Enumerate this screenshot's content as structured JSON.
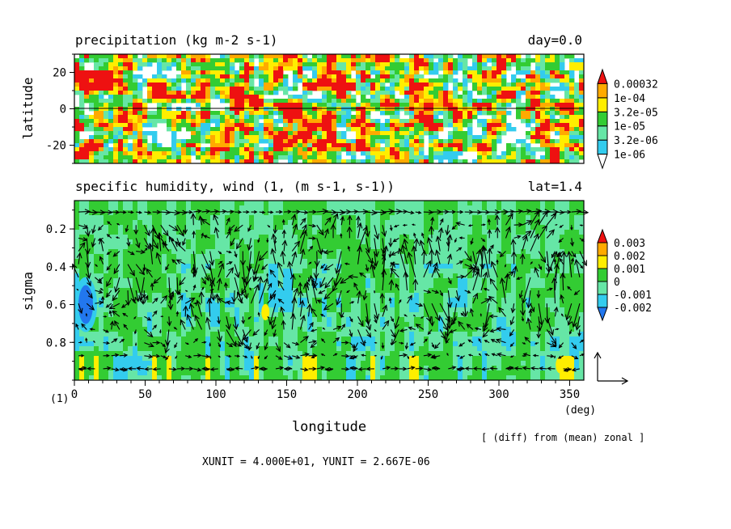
{
  "footer": {
    "units": "XUNIT = 4.000E+01, YUNIT = 2.667E-06",
    "diff_note": "[ (diff) from (mean) zonal ]",
    "corner_label": "(1)"
  },
  "colors": {
    "white": "#ffffff",
    "cyan": "#33ccee",
    "light_green": "#66e6a6",
    "green": "#33cc33",
    "yellow": "#ffee00",
    "orange": "#ffaa00",
    "red": "#ee1111",
    "blue": "#2277ee",
    "arrow": "#000000"
  },
  "chart_data": [
    {
      "type": "heatmap",
      "title": "precipitation (kg m-2 s-1)",
      "right_title": "day=0.0",
      "xlabel": "",
      "ylabel": "latitude",
      "x_unit_label": "",
      "xlim": [
        0,
        360
      ],
      "ylim": [
        -30,
        30
      ],
      "yticks": [
        "20",
        "0",
        "-20"
      ],
      "ytick_values": [
        20,
        0,
        -20
      ],
      "zero_line": 0,
      "levels": [
        "1e-06",
        "3.2e-06",
        "1e-05",
        "3.2e-05",
        "1e-04",
        "0.00032"
      ],
      "level_colors": [
        "#ffffff",
        "#33ccee",
        "#66e6a6",
        "#33cc33",
        "#ffee00",
        "#ffaa00",
        "#ee1111"
      ],
      "field_pattern": "cellular noise, random precipitation cells across tropics"
    },
    {
      "type": "heatmap",
      "title": "specific humidity, wind (1, (m s-1, s-1))",
      "right_title": "lat=1.4",
      "xlabel": "longitude",
      "ylabel": "sigma",
      "x_unit_label": "(deg)",
      "xlim": [
        0,
        360
      ],
      "ylim": [
        1.0,
        0.05
      ],
      "xticks": [
        "0",
        "50",
        "100",
        "150",
        "200",
        "250",
        "300",
        "350"
      ],
      "xtick_values": [
        0,
        50,
        100,
        150,
        200,
        250,
        300,
        350
      ],
      "yticks": [
        "0.2",
        "0.4",
        "0.6",
        "0.8"
      ],
      "ytick_values": [
        0.2,
        0.4,
        0.6,
        0.8
      ],
      "levels": [
        "-0.002",
        "-0.001",
        "0",
        "0.001",
        "0.002",
        "0.003"
      ],
      "level_colors": [
        "#2277ee",
        "#33ccee",
        "#66e6a6",
        "#33cc33",
        "#ffee00",
        "#ffaa00",
        "#ee1111"
      ],
      "vector_overlay": "wind (u, omega) arrows, strong vertical motion columns",
      "anomalies": [
        {
          "kind": "dry",
          "lon": 8,
          "sigma": 0.6
        },
        {
          "kind": "moist",
          "lon": 135,
          "sigma": 0.64
        },
        {
          "kind": "moist",
          "lon": 343,
          "sigma": 0.92
        }
      ]
    }
  ]
}
